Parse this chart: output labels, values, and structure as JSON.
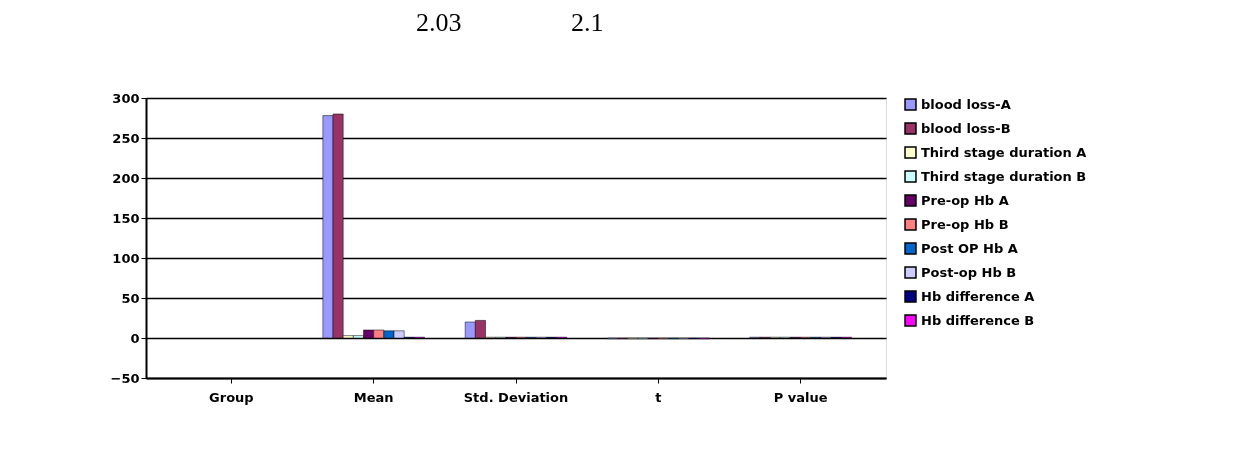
{
  "chart_data": {
    "type": "bar",
    "categories": [
      "Group",
      "Mean",
      "Std. Deviation",
      "t",
      "P value"
    ],
    "series": [
      {
        "name": "blood loss-A",
        "color": "#9999ff",
        "values": [
          null,
          278,
          20,
          -1,
          1
        ]
      },
      {
        "name": "blood loss-B",
        "color": "#993366",
        "values": [
          null,
          280,
          22,
          -1,
          1
        ]
      },
      {
        "name": "Third stage duration A",
        "color": "#ffffcc",
        "values": [
          null,
          3,
          1,
          -1,
          1
        ]
      },
      {
        "name": "Third stage duration B",
        "color": "#ccffff",
        "values": [
          null,
          3,
          1,
          -1,
          1
        ]
      },
      {
        "name": "Pre-op Hb A",
        "color": "#660066",
        "values": [
          null,
          10,
          1,
          -1,
          1
        ]
      },
      {
        "name": "Pre-op Hb B",
        "color": "#ff8080",
        "values": [
          null,
          10,
          1,
          -1,
          1
        ]
      },
      {
        "name": "Post OP Hb A",
        "color": "#0066cc",
        "values": [
          null,
          9,
          1,
          -1,
          1
        ]
      },
      {
        "name": "Post-op Hb B",
        "color": "#ccccff",
        "values": [
          null,
          9,
          1,
          -1,
          1
        ]
      },
      {
        "name": "Hb difference A",
        "color": "#000080",
        "values": [
          null,
          1,
          1,
          -1,
          1
        ]
      },
      {
        "name": "Hb difference B",
        "color": "#ff00ff",
        "values": [
          null,
          1,
          1,
          -1,
          1
        ]
      }
    ],
    "ylim": [
      -50,
      300
    ],
    "yticks": [
      -50,
      0,
      50,
      100,
      150,
      200,
      250,
      300
    ],
    "grid": "y",
    "legend": "right",
    "annotations": [
      "2.03",
      "2.1"
    ]
  }
}
